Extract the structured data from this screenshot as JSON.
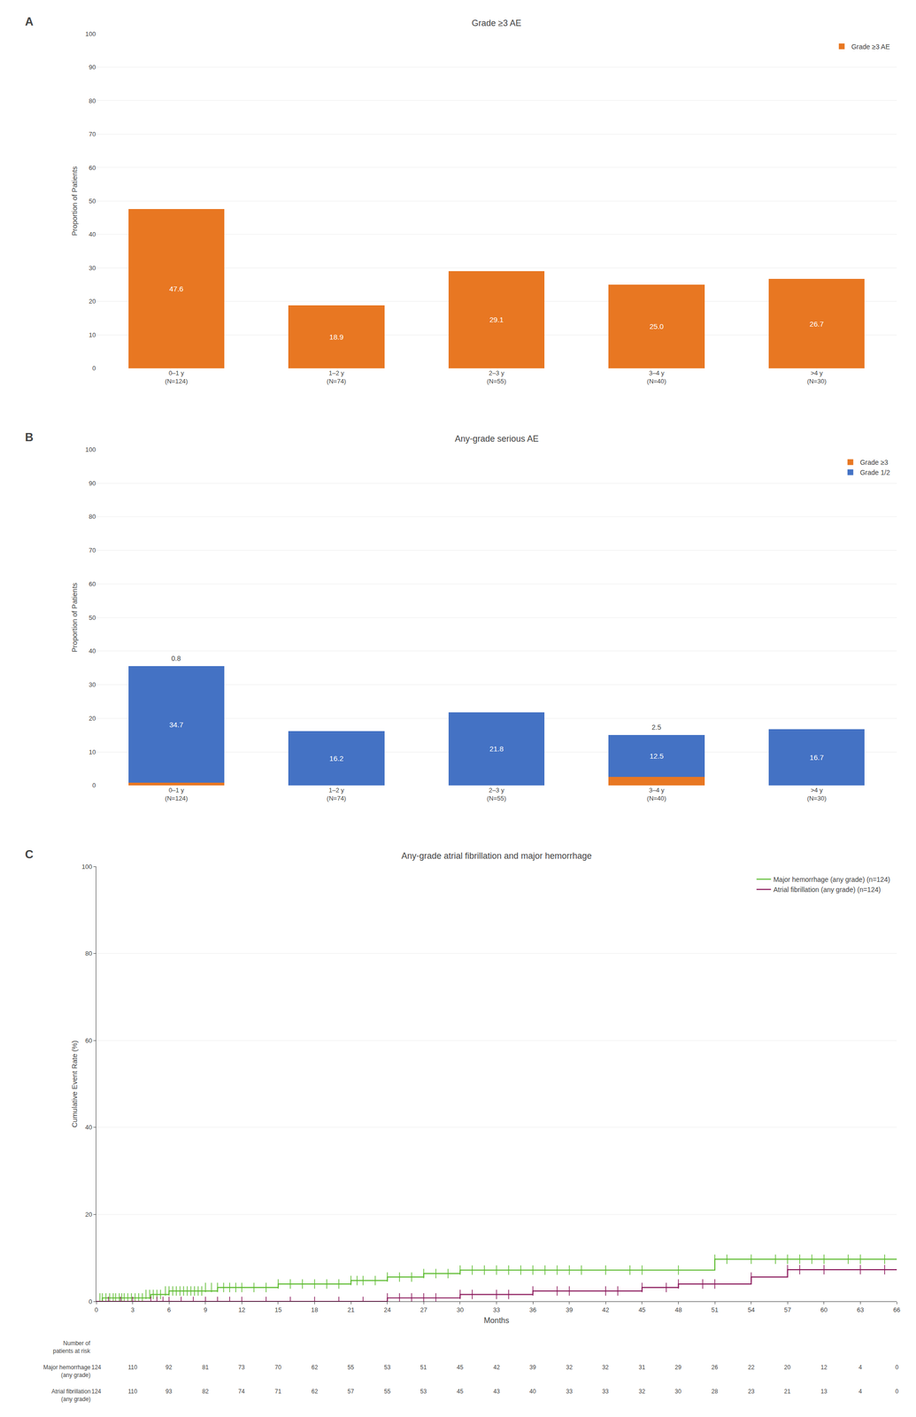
{
  "chart_data": [
    {
      "type": "bar",
      "title": "Grade ≥3 AE",
      "categories": [
        "0–1 y\n(N=124)",
        "1–2 y\n(N=74)",
        "2–3 y\n(N=55)",
        "3–4 y\n(N=40)",
        ">4 y\n(N=30)"
      ],
      "series": [
        {
          "name": "Grade ≥3 AE",
          "color": "#E87722",
          "values": [
            47.6,
            18.9,
            29.1,
            25.0,
            26.7
          ],
          "value_labels": [
            "47.6",
            "18.9",
            "29.1",
            "25.0",
            "26.7"
          ]
        }
      ],
      "ylabel": "Proportion of Patients",
      "ylim": [
        0,
        100
      ],
      "yticks": [
        0,
        10,
        20,
        30,
        40,
        50,
        60,
        70,
        80,
        90,
        100
      ],
      "grid": true,
      "legend": "upper right",
      "data_labels": true,
      "annotations": [
        "A"
      ]
    },
    {
      "type": "bar",
      "title": "Any-grade serious AE",
      "categories": [
        "0–1 y\n(N=124)",
        "1–2 y\n(N=74)",
        "2–3 y\n(N=55)",
        "3–4 y\n(N=40)",
        ">4 y\n(N=30)"
      ],
      "stacked": true,
      "series": [
        {
          "name": "Grade ≥3",
          "color": "#E87722",
          "values": [
            0.8,
            0.0,
            0.0,
            2.5,
            0.0
          ],
          "value_labels": [
            "0.8",
            null,
            null,
            "2.5",
            null
          ]
        },
        {
          "name": "Grade 1/2",
          "color": "#4472C4",
          "values": [
            34.7,
            16.2,
            21.8,
            12.5,
            16.7
          ]
        }
      ],
      "ylabel": "Proportion of Patients",
      "ylim": [
        0,
        100
      ],
      "yticks": [
        0,
        10,
        20,
        30,
        40,
        50,
        60,
        70,
        80,
        90,
        100
      ],
      "grid": true,
      "legend": "upper right",
      "data_labels": true,
      "annotations": [
        "B"
      ]
    },
    {
      "type": "step",
      "title": "Any-grade atrial fibrillation and major hemorrhage",
      "ylabel": "Cumulative Event Rate (%)",
      "xlabel": "Months",
      "ylim": [
        0,
        100
      ],
      "xlim": [
        0,
        66
      ],
      "xticks": [
        0,
        3,
        6,
        9,
        12,
        15,
        18,
        21,
        24,
        27,
        30,
        33,
        36,
        39,
        42,
        45,
        48,
        51,
        54,
        57,
        60,
        63,
        66
      ],
      "yticks": [
        0,
        20,
        40,
        60,
        80,
        100
      ],
      "grid": true,
      "legend": "upper right",
      "series": [
        {
          "name": "Major hemorrhage (any grade) (n=124)",
          "color": "#5DBB30",
          "x": [
            0,
            0.3,
            0.5,
            0.7,
            1.0,
            1.2,
            1.5,
            1.8,
            2.2,
            2.5,
            2.8,
            3.0,
            3.5,
            4.0,
            4.5,
            5.0,
            5.5,
            6.0,
            6.5,
            7.0,
            7.5,
            8.0,
            8.5,
            9.0,
            10.0,
            11.0,
            11.5,
            12.0,
            13.0,
            14.0,
            15.0,
            16.0,
            17.0,
            18.0,
            19.0,
            20.0,
            21.0,
            22.0,
            23.0,
            24.0,
            25.0,
            25.5,
            26.0,
            27.0,
            28.0,
            29.0,
            30.0,
            31.0,
            32.0,
            33.0,
            34.0,
            35.0,
            36.0,
            37.0,
            38.0,
            39.0,
            40.0,
            41.0,
            42.0,
            44.0,
            45.0,
            48.0,
            51.0,
            52.0,
            54.0,
            55.0,
            57.0,
            58.0,
            59.0,
            60.0,
            61.0,
            63.0,
            64.0,
            65.0,
            66.0
          ],
          "values": [
            0,
            0,
            0.8,
            0.8,
            0.8,
            0.8,
            0.8,
            0.8,
            0.8,
            0.8,
            0.8,
            0.8,
            0.8,
            0.8,
            1.6,
            1.6,
            1.6,
            2.4,
            2.4,
            2.4,
            2.4,
            2.4,
            2.4,
            2.4,
            3.2,
            3.2,
            3.2,
            3.2,
            3.2,
            3.2,
            4.0,
            4.0,
            4.0,
            4.0,
            4.0,
            4.0,
            4.8,
            4.8,
            4.8,
            5.6,
            5.6,
            5.6,
            5.6,
            6.4,
            6.4,
            6.4,
            7.2,
            7.2,
            7.2,
            7.2,
            7.2,
            7.2,
            7.2,
            7.2,
            7.2,
            7.2,
            7.2,
            7.2,
            7.2,
            7.2,
            7.2,
            7.2,
            9.7,
            9.7,
            9.7,
            9.7,
            9.7,
            9.7,
            9.7,
            9.7,
            9.7,
            9.7,
            9.7,
            9.7,
            9.7
          ],
          "censor_x": [
            0.3,
            0.5,
            0.8,
            1.1,
            1.4,
            1.6,
            1.9,
            2.1,
            2.3,
            2.6,
            2.9,
            3.2,
            3.5,
            3.8,
            4.1,
            4.4,
            4.7,
            5.0,
            5.3,
            5.7,
            6.0,
            6.3,
            6.6,
            6.9,
            7.2,
            7.5,
            7.8,
            8.1,
            8.4,
            8.7,
            9.0,
            9.5,
            10.0,
            10.5,
            11.0,
            11.5,
            12.0,
            13.0,
            14.0,
            15.0,
            16.0,
            17.0,
            18.0,
            19.0,
            20.0,
            21.0,
            21.5,
            22.0,
            23.0,
            24.0,
            25.0,
            26.0,
            27.0,
            28.0,
            29.0,
            30.0,
            31.0,
            32.0,
            33.0,
            34.0,
            35.0,
            36.0,
            37.0,
            38.0,
            39.0,
            40.0,
            42.0,
            44.0,
            45.0,
            48.0,
            51.0,
            52.0,
            54.0,
            56.0,
            57.0,
            58.0,
            59.0,
            60.0,
            62.0,
            63.0,
            65.0
          ],
          "censor_values": [
            0.8,
            0.8,
            0.8,
            0.8,
            0.8,
            0.8,
            0.8,
            0.8,
            0.8,
            0.8,
            0.8,
            0.8,
            0.8,
            0.8,
            1.6,
            1.6,
            1.6,
            1.6,
            1.6,
            2.4,
            2.4,
            2.4,
            2.4,
            2.4,
            2.4,
            2.4,
            2.4,
            2.4,
            2.4,
            2.4,
            3.2,
            3.2,
            3.2,
            3.2,
            3.2,
            3.2,
            3.2,
            3.2,
            3.2,
            4.0,
            4.0,
            4.0,
            4.0,
            4.0,
            4.0,
            4.8,
            4.8,
            4.8,
            4.8,
            5.6,
            5.6,
            5.6,
            6.4,
            6.4,
            6.4,
            7.2,
            7.2,
            7.2,
            7.2,
            7.2,
            7.2,
            7.2,
            7.2,
            7.2,
            7.2,
            7.2,
            7.2,
            7.2,
            7.2,
            7.2,
            9.7,
            9.7,
            9.7,
            9.7,
            9.7,
            9.7,
            9.7,
            9.7,
            9.7,
            9.7,
            9.7
          ]
        },
        {
          "name": "Atrial fibrillation (any grade) (n=124)",
          "color": "#8B1A5C",
          "x": [
            0,
            1.0,
            2.0,
            3.0,
            4.0,
            5.0,
            6.0,
            8.0,
            9.0,
            10.0,
            11.0,
            12.0,
            13.0,
            14.0,
            16.0,
            18.0,
            20.0,
            21.0,
            22.0,
            24.0,
            25.0,
            27.0,
            28.0,
            30.0,
            31.0,
            32.0,
            33.0,
            34.0,
            36.0,
            37.0,
            39.0,
            40.0,
            42.0,
            43.0,
            45.0,
            46.0,
            48.0,
            50.0,
            51.0,
            54.0,
            55.0,
            57.0,
            58.0,
            60.0,
            61.0,
            63.0,
            64.0,
            65.0,
            66.0
          ],
          "values": [
            0,
            0,
            0,
            0,
            0,
            0,
            0,
            0,
            0,
            0,
            0,
            0,
            0,
            0,
            0,
            0,
            0,
            0,
            0,
            0.8,
            0.8,
            0.8,
            0.8,
            1.6,
            1.6,
            1.6,
            1.6,
            1.6,
            2.4,
            2.4,
            2.4,
            2.4,
            2.4,
            2.4,
            3.2,
            3.2,
            4.0,
            4.0,
            4.0,
            5.6,
            5.6,
            7.3,
            7.3,
            7.3,
            7.3,
            7.3,
            7.3,
            7.3,
            7.3
          ],
          "censor_x": [
            1.0,
            2.0,
            3.0,
            4.5,
            5.0,
            5.5,
            6.0,
            7.0,
            8.0,
            9.0,
            10.0,
            11.0,
            12.0,
            14.0,
            16.0,
            18.0,
            20.0,
            22.0,
            24.0,
            25.0,
            26.0,
            27.0,
            28.0,
            30.0,
            31.0,
            33.0,
            34.0,
            36.0,
            38.0,
            39.0,
            42.0,
            43.0,
            45.0,
            47.0,
            48.0,
            50.0,
            51.0,
            54.0,
            57.0,
            58.0,
            60.0,
            63.0,
            65.0
          ],
          "censor_values": [
            0,
            0,
            0,
            0,
            0,
            0,
            0,
            0,
            0,
            0,
            0,
            0,
            0,
            0,
            0,
            0,
            0,
            0,
            0.8,
            0.8,
            0.8,
            0.8,
            0.8,
            1.6,
            1.6,
            1.6,
            1.6,
            2.4,
            2.4,
            2.4,
            2.4,
            2.4,
            3.2,
            3.2,
            4.0,
            4.0,
            4.0,
            5.6,
            7.3,
            7.3,
            7.3,
            7.3,
            7.3
          ]
        }
      ],
      "risk_table": {
        "title": "Number of\npatients at risk",
        "x": [
          0,
          3,
          6,
          9,
          12,
          15,
          18,
          21,
          24,
          27,
          30,
          33,
          36,
          39,
          42,
          45,
          48,
          51,
          54,
          57,
          60,
          63,
          66
        ],
        "rows": [
          {
            "name": "Major hemorrhage\n(any grade)",
            "values": [
              124,
              110,
              92,
              81,
              73,
              70,
              62,
              55,
              53,
              51,
              45,
              42,
              39,
              32,
              32,
              31,
              29,
              26,
              22,
              20,
              12,
              4,
              0
            ]
          },
          {
            "name": "Atrial fibrillation\n(any grade)",
            "values": [
              124,
              110,
              93,
              82,
              74,
              71,
              62,
              57,
              55,
              53,
              45,
              43,
              40,
              33,
              33,
              32,
              30,
              28,
              23,
              21,
              13,
              4,
              0
            ]
          }
        ]
      },
      "annotations": [
        "C"
      ]
    }
  ]
}
